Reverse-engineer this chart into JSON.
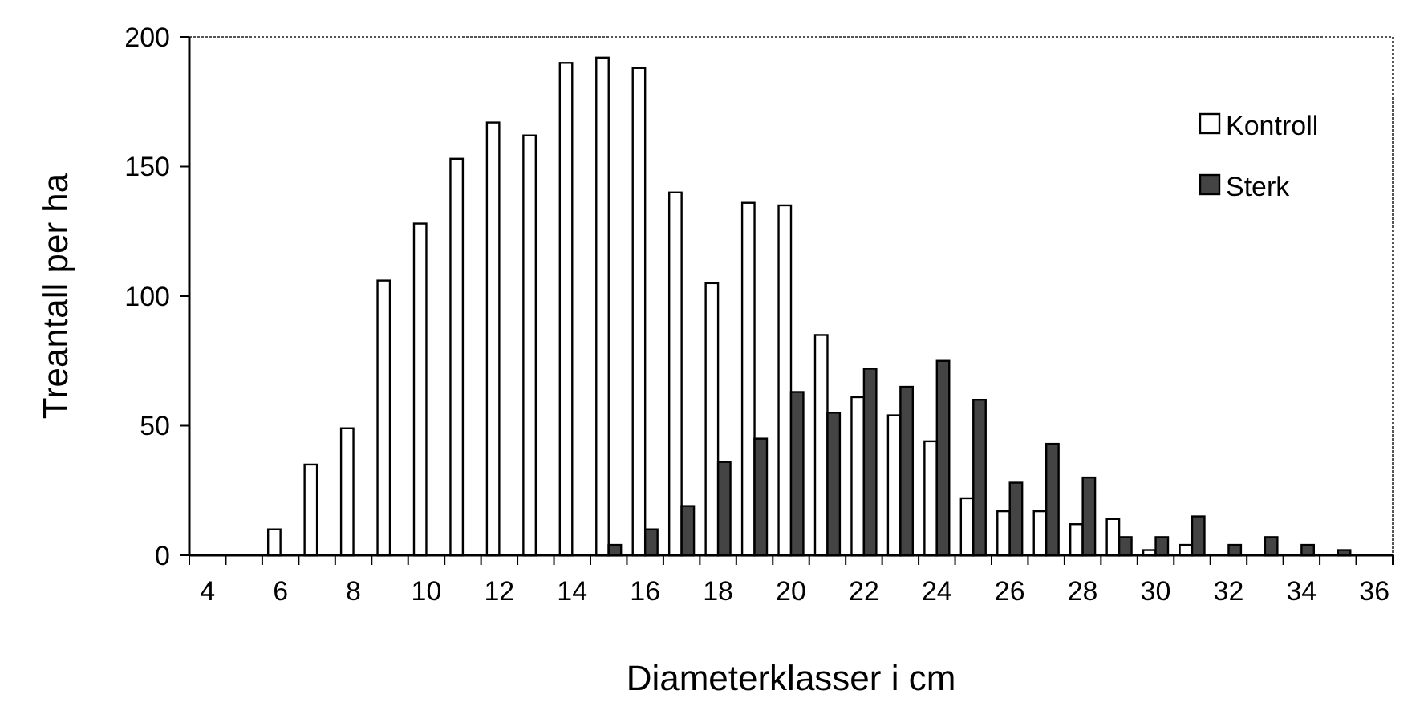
{
  "chart_data": {
    "type": "bar",
    "xlabel": "Diameterklasser i cm",
    "ylabel": "Treantall per ha",
    "categories": [
      "4",
      null,
      "6",
      null,
      "8",
      null,
      "10",
      null,
      "12",
      null,
      "14",
      null,
      "16",
      null,
      "18",
      null,
      "20",
      null,
      "22",
      null,
      "24",
      null,
      "26",
      null,
      "28",
      null,
      "30",
      null,
      "32",
      null,
      "34",
      null,
      "36"
    ],
    "series": [
      {
        "name": "Kontroll",
        "color": "#ffffff",
        "values": [
          null,
          null,
          10,
          35,
          49,
          106,
          128,
          153,
          167,
          162,
          190,
          192,
          188,
          140,
          105,
          136,
          135,
          85,
          61,
          54,
          44,
          22,
          17,
          17,
          12,
          14,
          2,
          4,
          null,
          null,
          null,
          null,
          null
        ]
      },
      {
        "name": "Sterk",
        "color": "#444444",
        "values": [
          null,
          null,
          null,
          null,
          null,
          null,
          null,
          null,
          null,
          null,
          null,
          4,
          10,
          19,
          36,
          45,
          63,
          55,
          72,
          65,
          75,
          60,
          28,
          43,
          30,
          7,
          7,
          15,
          4,
          7,
          4,
          2,
          null
        ]
      }
    ],
    "ylim": [
      0,
      200
    ],
    "yticks": [
      0,
      50,
      100,
      150,
      200
    ],
    "grid": false,
    "legend": "top right"
  }
}
